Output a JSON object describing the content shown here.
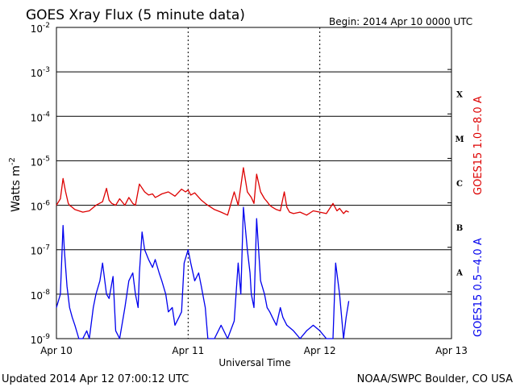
{
  "chart_data": {
    "type": "line",
    "title": "GOES Xray Flux (5 minute data)",
    "begin_label": "Begin:  2014 Apr 10 0000 UTC",
    "ylabel": "Watts m",
    "ylabel_superscript": "-2",
    "xlabel": "Universal Time",
    "yscale": "log",
    "ylim": [
      1e-09,
      0.01
    ],
    "xlim_days": [
      0,
      3
    ],
    "grid": true,
    "y_ticks": [
      {
        "base": "10",
        "exp": "-2",
        "value": 0.01
      },
      {
        "base": "10",
        "exp": "-3",
        "value": 0.001
      },
      {
        "base": "10",
        "exp": "-4",
        "value": 0.0001
      },
      {
        "base": "10",
        "exp": "-5",
        "value": 1e-05
      },
      {
        "base": "10",
        "exp": "-6",
        "value": 1e-06
      },
      {
        "base": "10",
        "exp": "-7",
        "value": 1e-07
      },
      {
        "base": "10",
        "exp": "-8",
        "value": 1e-08
      },
      {
        "base": "10",
        "exp": "-9",
        "value": 1e-09
      }
    ],
    "x_ticks": [
      {
        "label": "Apr 10",
        "day": 0
      },
      {
        "label": "Apr 11",
        "day": 1
      },
      {
        "label": "Apr 12",
        "day": 2
      },
      {
        "label": "Apr 13",
        "day": 3
      }
    ],
    "flare_classes": [
      {
        "label": "X",
        "value": 0.000316
      },
      {
        "label": "M",
        "value": 3.16e-05
      },
      {
        "label": "C",
        "value": 3.16e-06
      },
      {
        "label": "B",
        "value": 3.16e-07
      },
      {
        "label": "A",
        "value": 3.16e-08
      }
    ],
    "series": [
      {
        "name": "GOES15 1.0−8.0 A",
        "color": "#dd0000",
        "x": [
          0.0,
          0.03,
          0.05,
          0.07,
          0.09,
          0.1,
          0.12,
          0.14,
          0.17,
          0.2,
          0.25,
          0.3,
          0.35,
          0.38,
          0.4,
          0.42,
          0.45,
          0.48,
          0.52,
          0.55,
          0.58,
          0.6,
          0.63,
          0.67,
          0.7,
          0.73,
          0.75,
          0.77,
          0.8,
          0.85,
          0.9,
          0.95,
          0.98,
          1.0,
          1.02,
          1.05,
          1.1,
          1.13,
          1.15,
          1.2,
          1.25,
          1.3,
          1.35,
          1.38,
          1.42,
          1.45,
          1.48,
          1.5,
          1.52,
          1.55,
          1.58,
          1.6,
          1.62,
          1.64,
          1.67,
          1.7,
          1.73,
          1.75,
          1.77,
          1.8,
          1.85,
          1.9,
          1.95,
          2.0,
          2.05,
          2.1,
          2.13,
          2.15,
          2.18,
          2.2,
          2.22
        ],
        "values": [
          1e-06,
          1.4e-06,
          4e-06,
          2e-06,
          1.1e-06,
          1e-06,
          9e-07,
          8e-07,
          7.5e-07,
          7e-07,
          7.5e-07,
          1e-06,
          1.2e-06,
          2.4e-06,
          1.3e-06,
          1.1e-06,
          1e-06,
          1.4e-06,
          1e-06,
          1.5e-06,
          1.1e-06,
          1e-06,
          3e-06,
          2e-06,
          1.7e-06,
          1.8e-06,
          1.5e-06,
          1.6e-06,
          1.8e-06,
          2e-06,
          1.6e-06,
          2.3e-06,
          2e-06,
          2.2e-06,
          1.7e-06,
          1.9e-06,
          1.3e-06,
          1.1e-06,
          1e-06,
          8e-07,
          7e-07,
          6e-07,
          2e-06,
          1e-06,
          7e-06,
          2e-06,
          1.5e-06,
          1.1e-06,
          5e-06,
          2e-06,
          1.4e-06,
          1.2e-06,
          1e-06,
          9e-07,
          8e-07,
          7.5e-07,
          2e-06,
          9e-07,
          7e-07,
          6.5e-07,
          7e-07,
          6e-07,
          7.5e-07,
          7e-07,
          6.5e-07,
          1.1e-06,
          7.5e-07,
          8.5e-07,
          6.5e-07,
          7.5e-07,
          7e-07
        ]
      },
      {
        "name": "GOES15 0.5−4.0 A",
        "color": "#0000ee",
        "x": [
          0.0,
          0.03,
          0.05,
          0.06,
          0.08,
          0.1,
          0.12,
          0.14,
          0.17,
          0.2,
          0.23,
          0.25,
          0.28,
          0.3,
          0.33,
          0.35,
          0.38,
          0.4,
          0.43,
          0.45,
          0.48,
          0.52,
          0.55,
          0.58,
          0.6,
          0.62,
          0.63,
          0.65,
          0.67,
          0.7,
          0.73,
          0.75,
          0.78,
          0.8,
          0.83,
          0.85,
          0.88,
          0.9,
          0.93,
          0.95,
          0.97,
          1.0,
          1.02,
          1.05,
          1.08,
          1.1,
          1.13,
          1.15,
          1.2,
          1.25,
          1.3,
          1.35,
          1.38,
          1.4,
          1.42,
          1.45,
          1.47,
          1.48,
          1.5,
          1.52,
          1.55,
          1.58,
          1.6,
          1.62,
          1.64,
          1.67,
          1.7,
          1.72,
          1.75,
          1.8,
          1.85,
          1.9,
          1.95,
          2.0,
          2.05,
          2.1,
          2.12,
          2.15,
          2.18,
          2.2,
          2.22
        ],
        "values": [
          5e-09,
          1e-08,
          3.5e-07,
          1e-07,
          1.5e-08,
          5e-09,
          3e-09,
          2e-09,
          1e-09,
          1e-09,
          1.5e-09,
          1e-09,
          5e-09,
          1e-08,
          2e-08,
          5e-08,
          1e-08,
          8e-09,
          2.5e-08,
          1.5e-09,
          1e-09,
          5e-09,
          2e-08,
          3e-08,
          1e-08,
          5e-09,
          3e-08,
          2.5e-07,
          1e-07,
          6e-08,
          4e-08,
          6e-08,
          3e-08,
          2e-08,
          1e-08,
          4e-09,
          5e-09,
          2e-09,
          3e-09,
          4e-09,
          5e-08,
          1e-07,
          5e-08,
          2e-08,
          3e-08,
          1.5e-08,
          5e-09,
          1e-09,
          1e-09,
          2e-09,
          1e-09,
          2.5e-09,
          5e-08,
          1e-08,
          9e-07,
          1e-07,
          3e-08,
          1e-08,
          5e-09,
          5e-07,
          2e-08,
          1e-08,
          5e-09,
          4e-09,
          3e-09,
          2e-09,
          5e-09,
          3e-09,
          2e-09,
          1.5e-09,
          1e-09,
          1.5e-09,
          2e-09,
          1.5e-09,
          1e-09,
          1e-09,
          5e-08,
          1e-08,
          1e-09,
          3e-09,
          7e-09
        ]
      }
    ]
  },
  "footer": {
    "updated": "Updated 2014 Apr 12 07:00:12 UTC",
    "source": "NOAA/SWPC Boulder, CO USA"
  }
}
